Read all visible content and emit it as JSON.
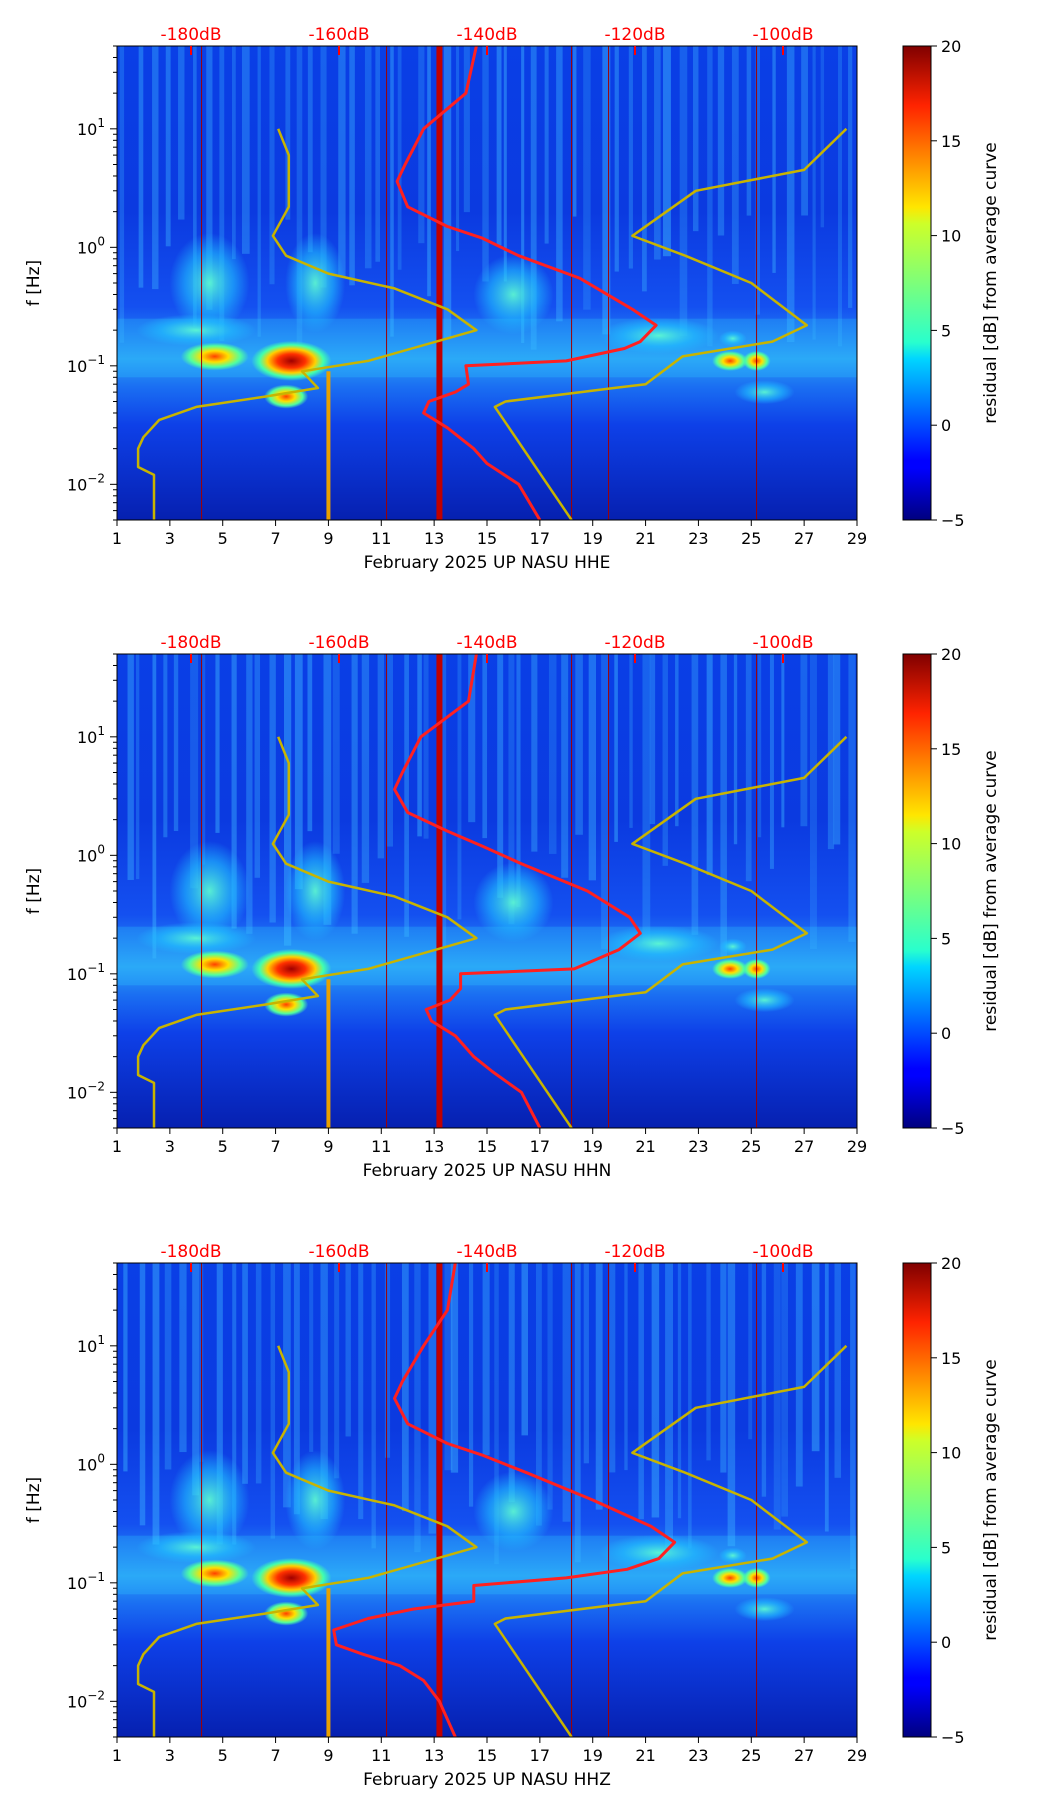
{
  "chart_data": [
    {
      "type": "heatmap",
      "xlabel": "February 2025 UP NASU  HHE",
      "ylabel": "f [Hz]",
      "x_ticks": [
        "1",
        "3",
        "5",
        "7",
        "9",
        "11",
        "13",
        "15",
        "17",
        "19",
        "21",
        "23",
        "25",
        "27",
        "29"
      ],
      "x_range": [
        1,
        29
      ],
      "y_range": [
        0.005,
        50
      ],
      "y_scale": "log",
      "y_ticks": [
        "10^-2",
        "10^-1",
        "10^0",
        "10^1"
      ],
      "colorbar": {
        "label": "residual [dB] from average curve",
        "range": [
          -5,
          20
        ],
        "ticks": [
          "-5",
          "0",
          "5",
          "10",
          "15",
          "20"
        ]
      },
      "db_scale": {
        "labels": [
          "-180dB",
          "-160dB",
          "-140dB",
          "-120dB",
          "-100dB"
        ],
        "values": [
          -180,
          -160,
          -140,
          -120,
          -100
        ],
        "x_positions": [
          3.8,
          9.4,
          15.0,
          20.6,
          26.2
        ]
      },
      "series": [
        {
          "name": "current noise curve",
          "color": "#ff2020",
          "points": [
            [
              14.6,
              50
            ],
            [
              14.2,
              20
            ],
            [
              12.6,
              10
            ],
            [
              11.9,
              5
            ],
            [
              11.6,
              3.6
            ],
            [
              12.0,
              2.2
            ],
            [
              13.5,
              1.5
            ],
            [
              14.8,
              1.2
            ],
            [
              16.2,
              0.85
            ],
            [
              18.5,
              0.55
            ],
            [
              20.5,
              0.3
            ],
            [
              21.4,
              0.22
            ],
            [
              20.8,
              0.16
            ],
            [
              20.2,
              0.14
            ],
            [
              18.0,
              0.11
            ],
            [
              14.2,
              0.1
            ],
            [
              14.3,
              0.07
            ],
            [
              13.8,
              0.06
            ],
            [
              12.8,
              0.05
            ],
            [
              12.6,
              0.04
            ],
            [
              13.5,
              0.03
            ],
            [
              14.5,
              0.02
            ],
            [
              15.0,
              0.015
            ],
            [
              16.2,
              0.01
            ],
            [
              17.0,
              0.005
            ]
          ]
        },
        {
          "name": "low noise model",
          "color": "#c8b400",
          "points": [
            [
              7.1,
              10
            ],
            [
              7.5,
              6
            ],
            [
              7.5,
              2.2
            ],
            [
              6.9,
              1.25
            ],
            [
              7.4,
              0.85
            ],
            [
              9.0,
              0.6
            ],
            [
              11.5,
              0.45
            ],
            [
              13.5,
              0.3
            ],
            [
              14.6,
              0.2
            ],
            [
              10.5,
              0.11
            ],
            [
              8.0,
              0.09
            ],
            [
              8.6,
              0.065
            ],
            [
              6.6,
              0.055
            ],
            [
              4.0,
              0.045
            ],
            [
              2.6,
              0.035
            ],
            [
              2.0,
              0.025
            ],
            [
              1.8,
              0.02
            ],
            [
              1.8,
              0.014
            ],
            [
              2.4,
              0.012
            ],
            [
              2.4,
              0.005
            ]
          ]
        },
        {
          "name": "high noise model",
          "color": "#c8b400",
          "points": [
            [
              28.6,
              10
            ],
            [
              27.0,
              4.5
            ],
            [
              22.9,
              3.0
            ],
            [
              20.5,
              1.25
            ],
            [
              22.5,
              0.85
            ],
            [
              25.0,
              0.5
            ],
            [
              27.1,
              0.22
            ],
            [
              25.8,
              0.16
            ],
            [
              22.4,
              0.12
            ],
            [
              21.0,
              0.07
            ],
            [
              19.8,
              0.065
            ],
            [
              15.7,
              0.05
            ],
            [
              15.3,
              0.045
            ],
            [
              18.2,
              0.005
            ]
          ]
        }
      ],
      "markers": [
        {
          "name": "day-13 vertical band",
          "x": 13.2
        }
      ]
    },
    {
      "type": "heatmap",
      "xlabel": "February 2025 UP NASU  HHN",
      "ylabel": "f [Hz]",
      "x_ticks": [
        "1",
        "3",
        "5",
        "7",
        "9",
        "11",
        "13",
        "15",
        "17",
        "19",
        "21",
        "23",
        "25",
        "27",
        "29"
      ],
      "x_range": [
        1,
        29
      ],
      "y_range": [
        0.005,
        50
      ],
      "y_scale": "log",
      "y_ticks": [
        "10^-2",
        "10^-1",
        "10^0",
        "10^1"
      ],
      "colorbar": {
        "label": "residual [dB] from average curve",
        "range": [
          -5,
          20
        ],
        "ticks": [
          "-5",
          "0",
          "5",
          "10",
          "15",
          "20"
        ]
      },
      "db_scale": {
        "labels": [
          "-180dB",
          "-160dB",
          "-140dB",
          "-120dB",
          "-100dB"
        ],
        "values": [
          -180,
          -160,
          -140,
          -120,
          -100
        ],
        "x_positions": [
          3.8,
          9.4,
          15.0,
          20.6,
          26.2
        ]
      },
      "series": [
        {
          "name": "current noise curve",
          "color": "#ff2020",
          "points": [
            [
              14.6,
              50
            ],
            [
              14.3,
              20
            ],
            [
              12.5,
              10
            ],
            [
              11.8,
              5
            ],
            [
              11.5,
              3.6
            ],
            [
              12.0,
              2.3
            ],
            [
              13.5,
              1.6
            ],
            [
              14.8,
              1.2
            ],
            [
              16.3,
              0.85
            ],
            [
              18.8,
              0.5
            ],
            [
              20.4,
              0.3
            ],
            [
              20.8,
              0.22
            ],
            [
              20.0,
              0.16
            ],
            [
              18.3,
              0.11
            ],
            [
              14.0,
              0.1
            ],
            [
              14.0,
              0.075
            ],
            [
              13.6,
              0.06
            ],
            [
              12.7,
              0.05
            ],
            [
              12.9,
              0.04
            ],
            [
              13.8,
              0.03
            ],
            [
              14.5,
              0.02
            ],
            [
              15.2,
              0.015
            ],
            [
              16.3,
              0.01
            ],
            [
              17.0,
              0.005
            ]
          ]
        },
        {
          "name": "low noise model",
          "color": "#c8b400",
          "points": [
            [
              7.1,
              10
            ],
            [
              7.5,
              6
            ],
            [
              7.5,
              2.2
            ],
            [
              6.9,
              1.25
            ],
            [
              7.4,
              0.85
            ],
            [
              9.0,
              0.6
            ],
            [
              11.5,
              0.45
            ],
            [
              13.5,
              0.3
            ],
            [
              14.6,
              0.2
            ],
            [
              10.5,
              0.11
            ],
            [
              8.0,
              0.09
            ],
            [
              8.6,
              0.065
            ],
            [
              6.6,
              0.055
            ],
            [
              4.0,
              0.045
            ],
            [
              2.6,
              0.035
            ],
            [
              2.0,
              0.025
            ],
            [
              1.8,
              0.02
            ],
            [
              1.8,
              0.014
            ],
            [
              2.4,
              0.012
            ],
            [
              2.4,
              0.005
            ]
          ]
        },
        {
          "name": "high noise model",
          "color": "#c8b400",
          "points": [
            [
              28.6,
              10
            ],
            [
              27.0,
              4.5
            ],
            [
              22.9,
              3.0
            ],
            [
              20.5,
              1.25
            ],
            [
              22.5,
              0.85
            ],
            [
              25.0,
              0.5
            ],
            [
              27.1,
              0.22
            ],
            [
              25.8,
              0.16
            ],
            [
              22.4,
              0.12
            ],
            [
              21.0,
              0.07
            ],
            [
              19.8,
              0.065
            ],
            [
              15.7,
              0.05
            ],
            [
              15.3,
              0.045
            ],
            [
              18.2,
              0.005
            ]
          ]
        }
      ],
      "markers": [
        {
          "name": "day-13 vertical band",
          "x": 13.2
        }
      ]
    },
    {
      "type": "heatmap",
      "xlabel": "February 2025 UP NASU  HHZ",
      "ylabel": "f [Hz]",
      "x_ticks": [
        "1",
        "3",
        "5",
        "7",
        "9",
        "11",
        "13",
        "15",
        "17",
        "19",
        "21",
        "23",
        "25",
        "27",
        "29"
      ],
      "x_range": [
        1,
        29
      ],
      "y_range": [
        0.005,
        50
      ],
      "y_scale": "log",
      "y_ticks": [
        "10^-2",
        "10^-1",
        "10^0",
        "10^1"
      ],
      "colorbar": {
        "label": "residual [dB] from average curve",
        "range": [
          -5,
          20
        ],
        "ticks": [
          "-5",
          "0",
          "5",
          "10",
          "15",
          "20"
        ]
      },
      "db_scale": {
        "labels": [
          "-180dB",
          "-160dB",
          "-140dB",
          "-120dB",
          "-100dB"
        ],
        "values": [
          -180,
          -160,
          -140,
          -120,
          -100
        ],
        "x_positions": [
          3.8,
          9.4,
          15.0,
          20.6,
          26.2
        ]
      },
      "series": [
        {
          "name": "current noise curve",
          "color": "#ff2020",
          "points": [
            [
              13.8,
              50
            ],
            [
              13.5,
              20
            ],
            [
              12.6,
              10
            ],
            [
              11.8,
              5
            ],
            [
              11.5,
              3.6
            ],
            [
              12.0,
              2.2
            ],
            [
              13.5,
              1.5
            ],
            [
              14.8,
              1.2
            ],
            [
              16.5,
              0.85
            ],
            [
              19.0,
              0.5
            ],
            [
              21.2,
              0.3
            ],
            [
              22.1,
              0.22
            ],
            [
              21.5,
              0.16
            ],
            [
              20.3,
              0.13
            ],
            [
              18.0,
              0.11
            ],
            [
              14.5,
              0.095
            ],
            [
              14.5,
              0.07
            ],
            [
              12.2,
              0.06
            ],
            [
              10.5,
              0.05
            ],
            [
              9.2,
              0.04
            ],
            [
              9.3,
              0.03
            ],
            [
              10.3,
              0.025
            ],
            [
              11.7,
              0.02
            ],
            [
              12.6,
              0.015
            ],
            [
              13.2,
              0.01
            ],
            [
              13.8,
              0.005
            ]
          ]
        },
        {
          "name": "low noise model",
          "color": "#c8b400",
          "points": [
            [
              7.1,
              10
            ],
            [
              7.5,
              6
            ],
            [
              7.5,
              2.2
            ],
            [
              6.9,
              1.25
            ],
            [
              7.4,
              0.85
            ],
            [
              9.0,
              0.6
            ],
            [
              11.5,
              0.45
            ],
            [
              13.5,
              0.3
            ],
            [
              14.6,
              0.2
            ],
            [
              10.5,
              0.11
            ],
            [
              8.0,
              0.09
            ],
            [
              8.6,
              0.065
            ],
            [
              6.6,
              0.055
            ],
            [
              4.0,
              0.045
            ],
            [
              2.6,
              0.035
            ],
            [
              2.0,
              0.025
            ],
            [
              1.8,
              0.02
            ],
            [
              1.8,
              0.014
            ],
            [
              2.4,
              0.012
            ],
            [
              2.4,
              0.005
            ]
          ]
        },
        {
          "name": "high noise model",
          "color": "#c8b400",
          "points": [
            [
              28.6,
              10
            ],
            [
              27.0,
              4.5
            ],
            [
              22.9,
              3.0
            ],
            [
              20.5,
              1.25
            ],
            [
              22.5,
              0.85
            ],
            [
              25.0,
              0.5
            ],
            [
              27.1,
              0.22
            ],
            [
              25.8,
              0.16
            ],
            [
              22.4,
              0.12
            ],
            [
              21.0,
              0.07
            ],
            [
              19.8,
              0.065
            ],
            [
              15.7,
              0.05
            ],
            [
              15.3,
              0.045
            ],
            [
              18.2,
              0.005
            ]
          ]
        }
      ],
      "markers": [
        {
          "name": "day-13 vertical band",
          "x": 13.2
        }
      ]
    }
  ]
}
